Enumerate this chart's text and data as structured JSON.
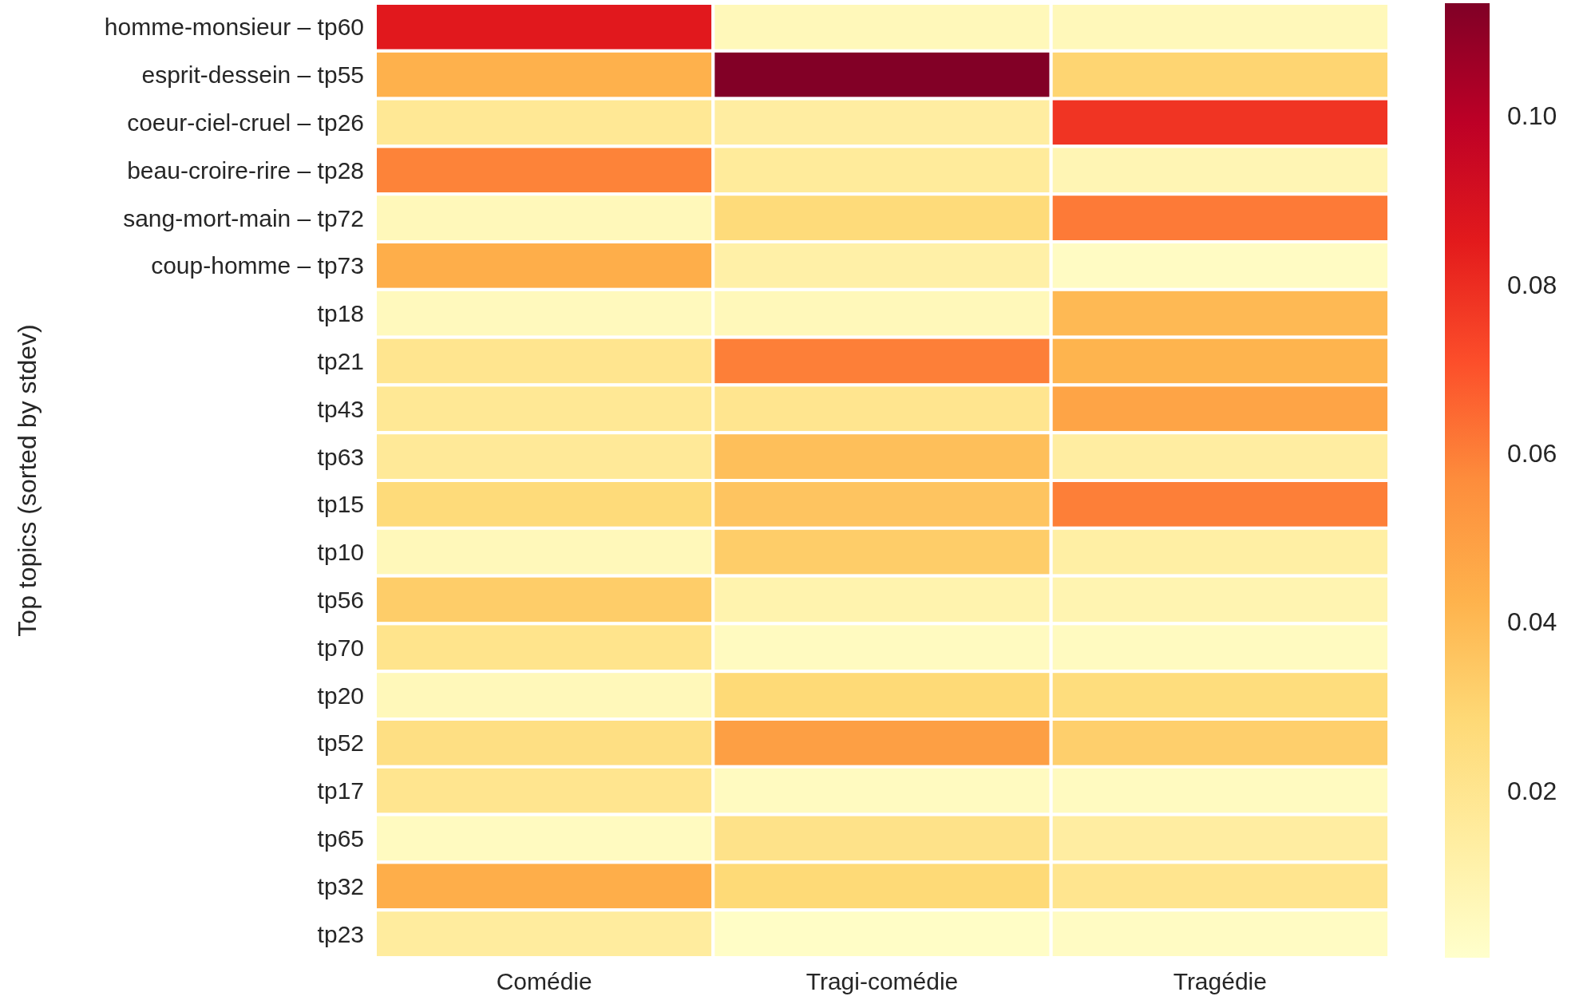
{
  "chart_data": {
    "type": "heatmap",
    "ylabel": "Top topics (sorted by stdev)",
    "categories": [
      "Comédie",
      "Tragi-comédie",
      "Tragédie"
    ],
    "y_categories": [
      "homme-monsieur – tp60",
      "esprit-dessein – tp55",
      "coeur-ciel-cruel – tp26",
      "beau-croire-rire – tp28",
      "sang-mort-main – tp72",
      "coup-homme – tp73",
      "tp18",
      "tp21",
      "tp43",
      "tp63",
      "tp15",
      "tp10",
      "tp56",
      "tp70",
      "tp20",
      "tp52",
      "tp17",
      "tp65",
      "tp32",
      "tp23"
    ],
    "cells": [
      [
        0.086,
        0.006,
        0.006
      ],
      [
        0.043,
        0.113,
        0.03
      ],
      [
        0.018,
        0.014,
        0.078
      ],
      [
        0.059,
        0.016,
        0.008
      ],
      [
        0.006,
        0.027,
        0.061
      ],
      [
        0.044,
        0.012,
        0.003
      ],
      [
        0.005,
        0.006,
        0.04
      ],
      [
        0.02,
        0.06,
        0.042
      ],
      [
        0.018,
        0.02,
        0.048
      ],
      [
        0.017,
        0.038,
        0.014
      ],
      [
        0.027,
        0.036,
        0.06
      ],
      [
        0.006,
        0.033,
        0.013
      ],
      [
        0.033,
        0.01,
        0.009
      ],
      [
        0.021,
        0.004,
        0.004
      ],
      [
        0.006,
        0.028,
        0.026
      ],
      [
        0.024,
        0.05,
        0.032
      ],
      [
        0.02,
        0.004,
        0.004
      ],
      [
        0.004,
        0.022,
        0.014
      ],
      [
        0.044,
        0.028,
        0.02
      ],
      [
        0.015,
        0.002,
        0.003
      ]
    ],
    "clim": [
      0.0002,
      0.1134
    ],
    "cticks": [
      0.02,
      0.04,
      0.06,
      0.08,
      {
        "value": 0.1,
        "label": "0.10"
      }
    ],
    "colors": [
      "#ffffcc",
      "#ffeda0",
      "#fed976",
      "#feb24c",
      "#fd8d3c",
      "#fc4e2a",
      "#e31a1c",
      "#bd0026",
      "#800026"
    ]
  }
}
